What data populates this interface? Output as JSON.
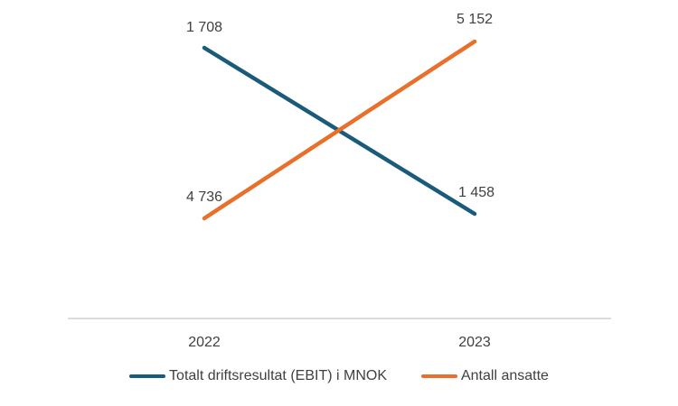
{
  "chart_data": {
    "type": "line",
    "categories": [
      "2022",
      "2023"
    ],
    "series": [
      {
        "name": "Totalt driftsresultat (EBIT) i MNOK",
        "values": [
          1708,
          1458
        ],
        "labels": [
          "1 708",
          "1 458"
        ],
        "color": "#1a5a7a"
      },
      {
        "name": "Antall ansatte",
        "values": [
          4736,
          5152
        ],
        "labels": [
          "4 736",
          "5 152"
        ],
        "color": "#e8702a"
      }
    ],
    "secondary_axis_series": [
      "Antall ansatte"
    ],
    "axes_visible": false,
    "grid": false,
    "legend_position": "bottom"
  }
}
